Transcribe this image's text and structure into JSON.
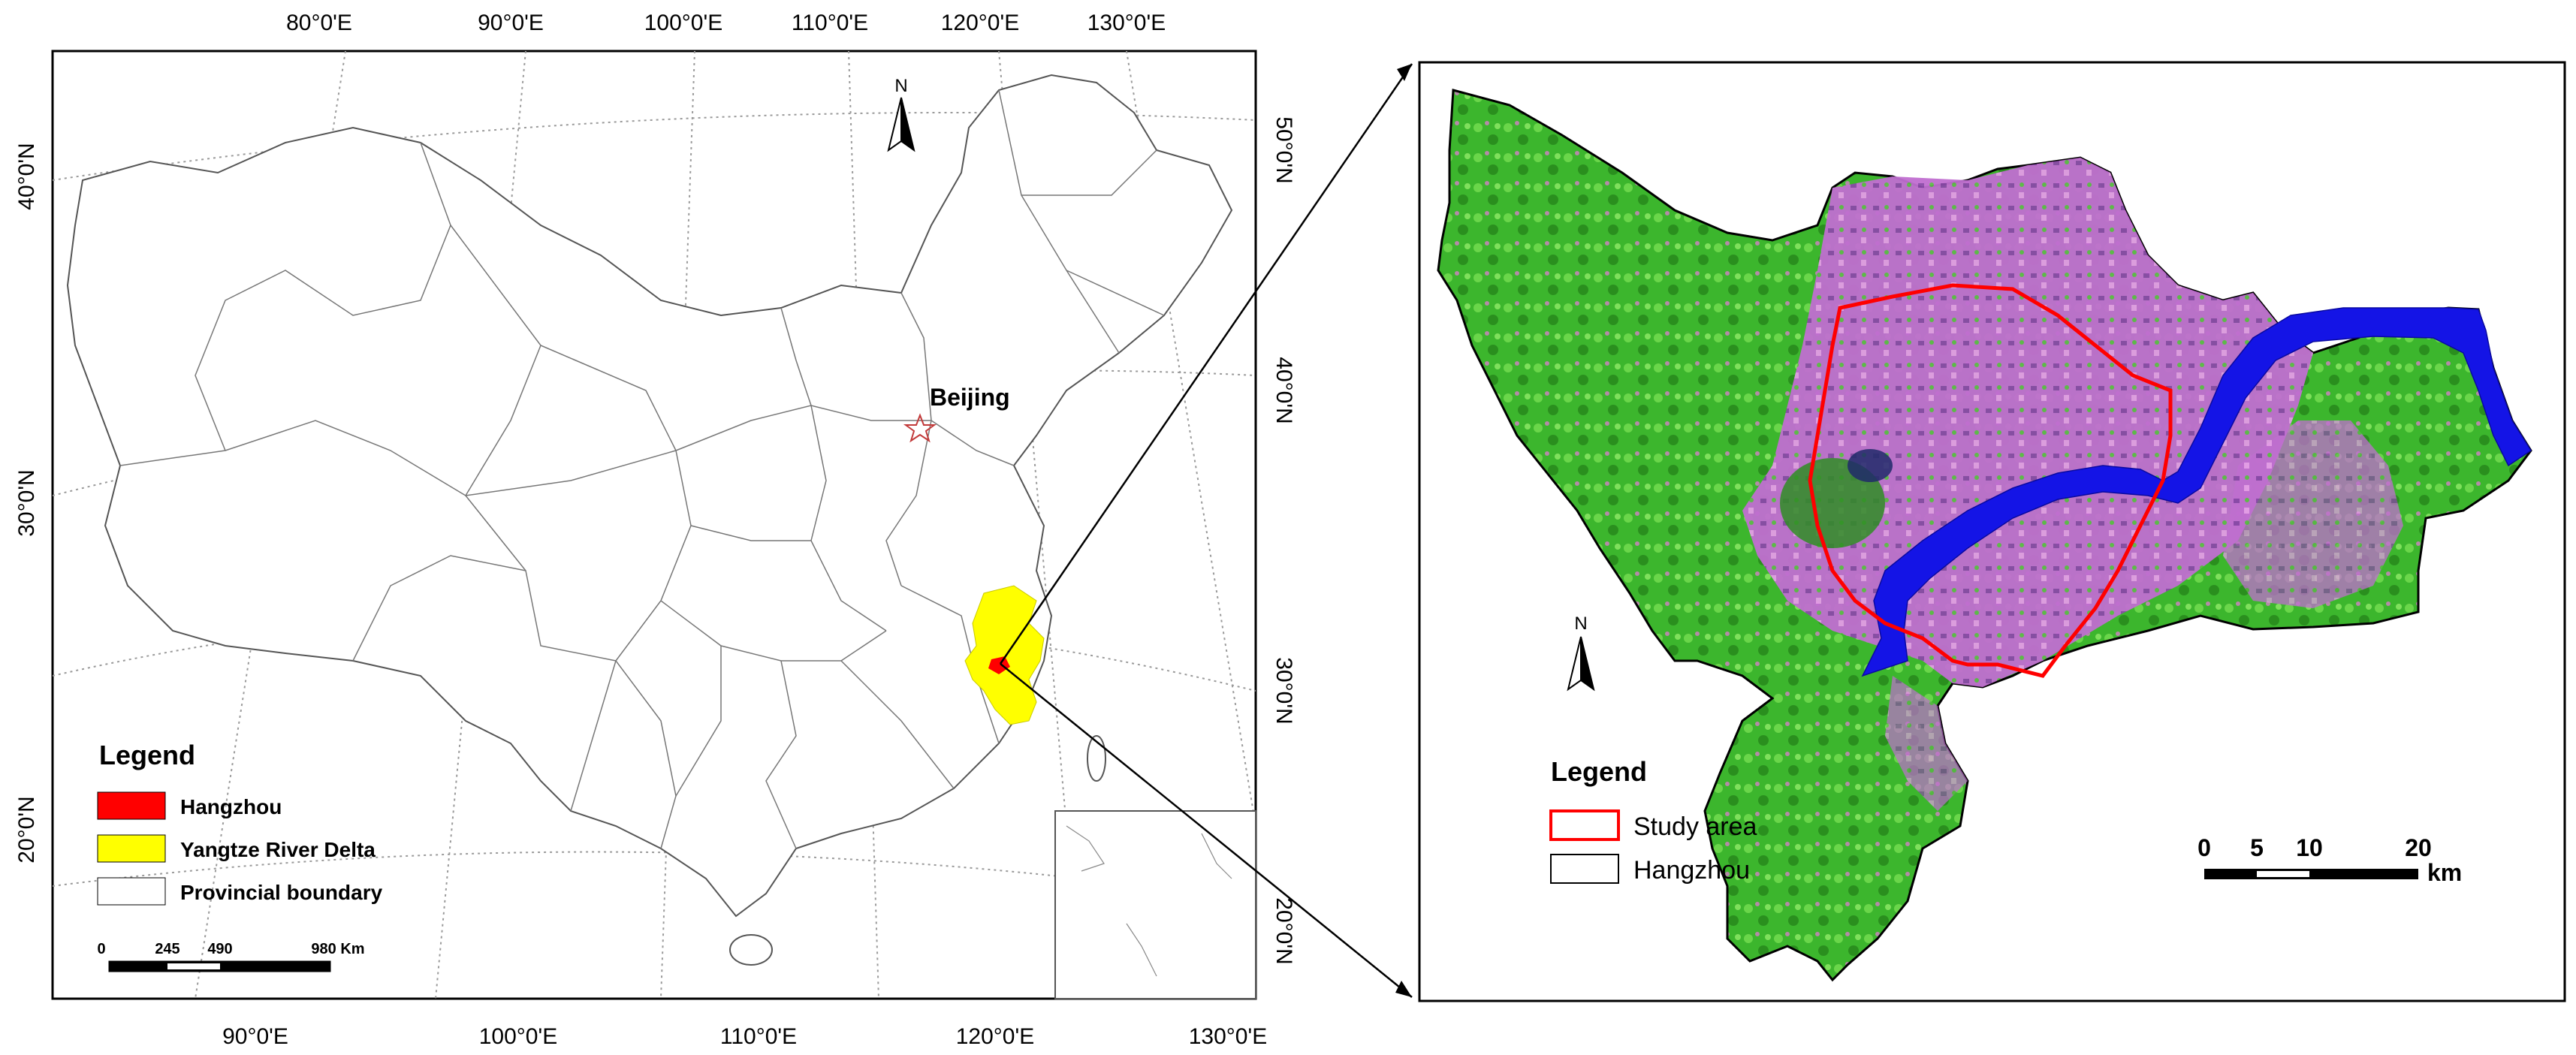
{
  "left_map": {
    "top_ticks": [
      "80°0'E",
      "90°0'E",
      "100°0'E",
      "110°0'E",
      "120°0'E",
      "130°0'E"
    ],
    "bottom_ticks": [
      "90°0'E",
      "100°0'E",
      "110°0'E",
      "120°0'E",
      "130°0'E"
    ],
    "left_ticks": [
      "40°0'N",
      "30°0'N",
      "20°0'N"
    ],
    "right_ticks": [
      "50°0'N",
      "40°0'N",
      "30°0'N",
      "20°0'N"
    ],
    "north_label": "N",
    "capital_label": "Beijing",
    "legend": {
      "title": "Legend",
      "items": [
        {
          "label": "Hangzhou",
          "color": "#ff0000"
        },
        {
          "label": "Yangtze River Delta",
          "color": "#ffff00"
        },
        {
          "label": "Provincial boundary",
          "color": "#ffffff"
        }
      ]
    },
    "scalebar": {
      "labels": [
        "0",
        "245",
        "490",
        "980 Km"
      ]
    }
  },
  "right_map": {
    "north_label": "N",
    "legend": {
      "title": "Legend",
      "items": [
        {
          "label": "Study area",
          "color": "#ff0000"
        },
        {
          "label": "Hangzhou",
          "color": "#000000"
        }
      ]
    },
    "scalebar": {
      "labels": [
        "0",
        "5",
        "10",
        "20"
      ],
      "unit": "km"
    }
  },
  "colors": {
    "vegetation": "#3dbb2a",
    "urban": "#c76fd6",
    "river": "#1414e6",
    "study_area": "#ff0000",
    "delta": "#ffff00"
  }
}
